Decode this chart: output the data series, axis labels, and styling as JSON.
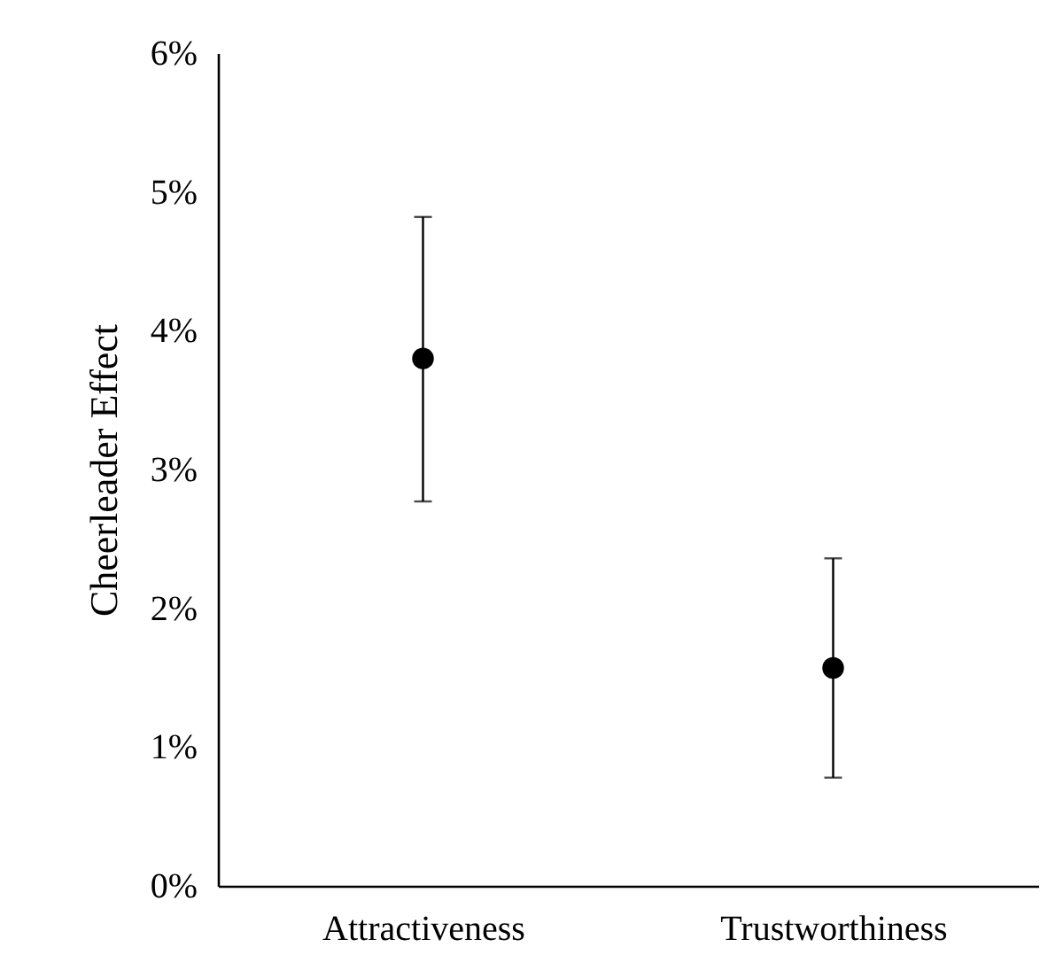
{
  "chart_data": {
    "type": "scatter",
    "ylabel": "Cheerleader Effect",
    "categories": [
      "Attractiveness",
      "Trustworthiness"
    ],
    "values": [
      3.8,
      1.57
    ],
    "errors": [
      [
        2.77,
        4.82
      ],
      [
        0.78,
        2.36
      ]
    ],
    "color": "#000000",
    "marker": "circle",
    "ylim": [
      0,
      6
    ],
    "yticks": [
      {
        "value": 0,
        "label": "0%"
      },
      {
        "value": 1,
        "label": "1%"
      },
      {
        "value": 2,
        "label": "2%"
      },
      {
        "value": 3,
        "label": "3%"
      },
      {
        "value": 4,
        "label": "4%"
      },
      {
        "value": 5,
        "label": "5%"
      },
      {
        "value": 6,
        "label": "6%"
      }
    ],
    "grid": false
  }
}
